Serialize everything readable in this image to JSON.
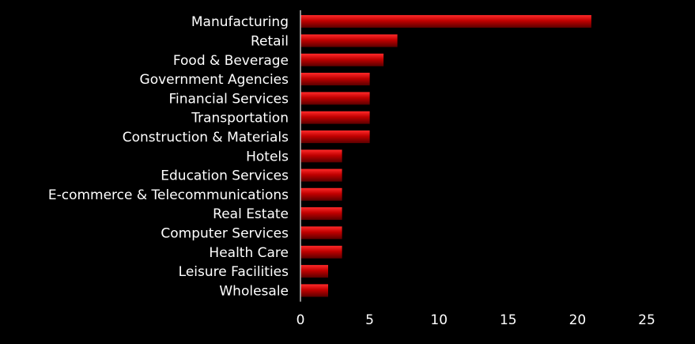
{
  "chart_data": {
    "type": "bar",
    "orientation": "horizontal",
    "categories": [
      "Manufacturing",
      "Retail",
      "Food & Beverage",
      "Government Agencies",
      "Financial Services",
      "Transportation",
      "Construction & Materials",
      "Hotels",
      "Education Services",
      "E-commerce & Telecommunications",
      "Real Estate",
      "Computer Services",
      "Health Care",
      "Leisure Facilities",
      "Wholesale"
    ],
    "values": [
      21,
      7,
      6,
      5,
      5,
      5,
      5,
      3,
      3,
      3,
      3,
      3,
      3,
      2,
      2
    ],
    "xlim": [
      0,
      25
    ],
    "xticks": [
      0,
      5,
      10,
      15,
      20,
      25
    ],
    "grid": false,
    "colors": {
      "background": "#000000",
      "bar_light": "#ff2a2a",
      "bar_dark": "#5a0000",
      "axis": "#bfbfbf",
      "text": "#ffffff"
    }
  }
}
